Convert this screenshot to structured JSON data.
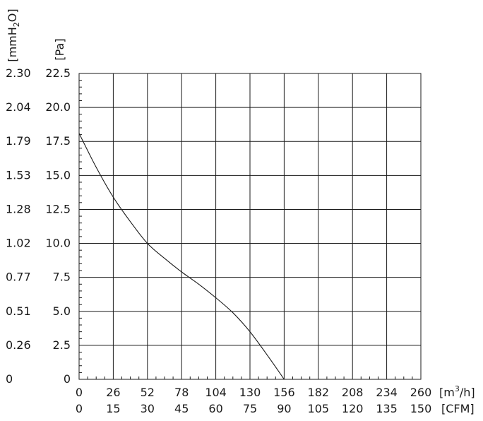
{
  "chart_data": {
    "type": "line",
    "title": "",
    "axes": {
      "x_primary": {
        "unit": "[m3/h]",
        "unit_base": "[m",
        "unit_sup": "3",
        "unit_tail": "/h]",
        "range": [
          0,
          260
        ],
        "ticks": [
          "0",
          "26",
          "52",
          "78",
          "104",
          "130",
          "156",
          "182",
          "208",
          "234",
          "260"
        ]
      },
      "x_secondary": {
        "unit": "[CFM]",
        "range": [
          0,
          150
        ],
        "ticks": [
          "0",
          "15",
          "30",
          "45",
          "60",
          "75",
          "90",
          "105",
          "120",
          "135",
          "150"
        ]
      },
      "y_primary": {
        "unit": "[Pa]",
        "range": [
          0,
          22.5
        ],
        "ticks": [
          "0",
          "2.5",
          "5.0",
          "7.5",
          "10.0",
          "12.5",
          "15.0",
          "17.5",
          "20.0",
          "22.5"
        ]
      },
      "y_secondary": {
        "unit": "[mmH2O]",
        "unit_base": "[mmH",
        "unit_sub": "2",
        "unit_tail": "O]",
        "range": [
          0,
          2.3
        ],
        "ticks": [
          "0",
          "0.26",
          "0.51",
          "0.77",
          "1.02",
          "1.28",
          "1.53",
          "1.79",
          "2.04",
          "2.30"
        ]
      }
    },
    "grid": true,
    "series": [
      {
        "x": [
          0,
          13,
          26,
          39,
          52,
          65,
          78,
          91,
          104,
          117,
          130,
          143,
          156
        ],
        "y": [
          18.1,
          15.6,
          13.4,
          11.6,
          10.0,
          8.9,
          7.9,
          7.0,
          6.0,
          4.9,
          3.5,
          1.8,
          0
        ]
      }
    ],
    "style": {
      "line_color": "#1a1a1a",
      "grid_color": "#1a1a1a"
    }
  }
}
